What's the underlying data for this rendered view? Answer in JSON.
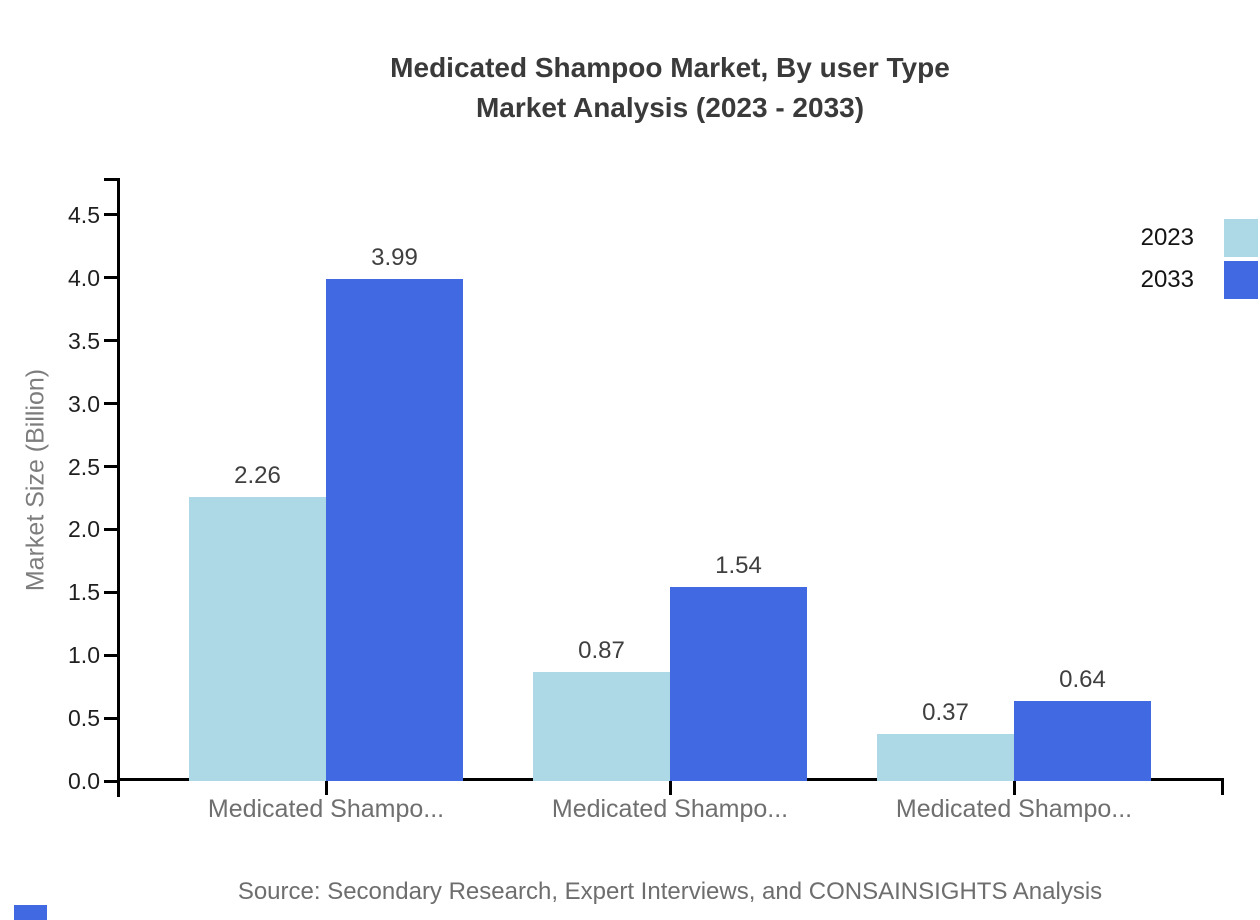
{
  "title": {
    "line1": "Medicated Shampoo Market, By user Type",
    "line2": "Market Analysis (2023 - 2033)"
  },
  "y_axis": {
    "label": "Market Size (Billion)"
  },
  "legend": {
    "position": "top-right",
    "entries": [
      {
        "label": "2023",
        "color": "#ADD8E6"
      },
      {
        "label": "2033",
        "color": "#4169E1"
      }
    ]
  },
  "source_line": "Source: Secondary Research, Expert Interviews, and CONSAINSIGHTS Analysis",
  "colors": {
    "series_2023": "#ADD8E6",
    "series_2033": "#4169E1",
    "axis": "#000000",
    "title_text": "#3a3a3a",
    "muted_text": "#6f6f6f",
    "brand_mark": "#4169E1"
  },
  "chart_data": {
    "type": "bar",
    "title": "Medicated Shampoo Market, By user Type Market Analysis (2023 - 2033)",
    "categories": [
      "Medicated Shampo...",
      "Medicated Shampo...",
      "Medicated Shampo..."
    ],
    "series": [
      {
        "name": "2023",
        "color": "#ADD8E6",
        "values": [
          2.26,
          0.87,
          0.37
        ]
      },
      {
        "name": "2033",
        "color": "#4169E1",
        "values": [
          3.99,
          1.54,
          0.64
        ]
      }
    ],
    "value_labels": {
      "2023": [
        "2.26",
        "0.87",
        "0.37"
      ],
      "2033": [
        "3.99",
        "1.54",
        "0.64"
      ]
    },
    "xlabel": "",
    "ylabel": "Market Size (Billion)",
    "ylim": [
      0,
      4.8
    ],
    "yticks": [
      0.0,
      0.5,
      1.0,
      1.5,
      2.0,
      2.5,
      3.0,
      3.5,
      4.0,
      4.5
    ],
    "grid": false,
    "legend_position": "top-right"
  }
}
